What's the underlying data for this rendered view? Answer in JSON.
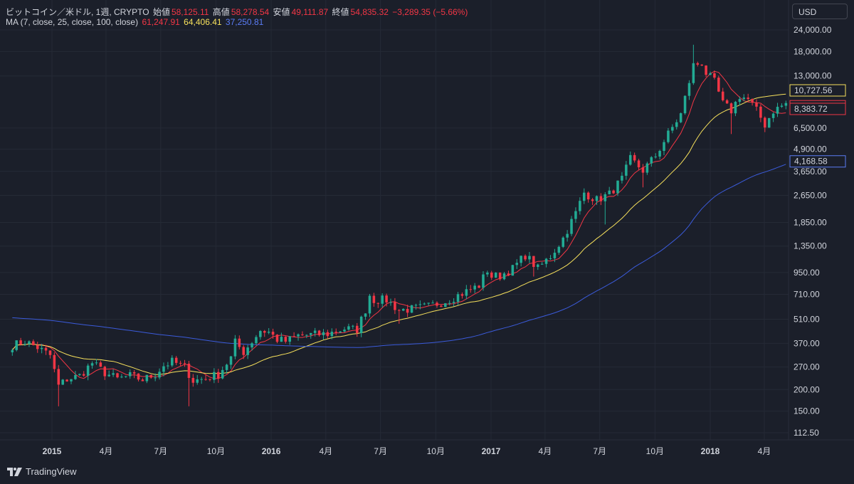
{
  "header": {
    "symbol": "ビットコイン／米ドル, 1週, CRYPTO",
    "open_label": "始値",
    "open_value": "58,125.11",
    "high_label": "高値",
    "high_value": "58,278.54",
    "low_label": "安値",
    "low_value": "49,111.87",
    "close_label": "終値",
    "close_value": "54,835.32",
    "change": "−3,289.35 (−5.66%)",
    "ma_label": "MA (7, close, 25, close, 100, close)",
    "ma7_value": "61,247.91",
    "ma25_value": "64,406.41",
    "ma100_value": "37,250.81"
  },
  "currency_button": "USD",
  "brand": "TradingView",
  "colors": {
    "background": "#1b1f2a",
    "grid": "#252a36",
    "text": "#d1d4dc",
    "up": "#22ab94",
    "down": "#f23645",
    "ma7": "#f23645",
    "ma25": "#f7e15c",
    "ma100": "#3b5bdb"
  },
  "chart_data": {
    "type": "candlestick",
    "scale": "log",
    "x_ticks": [
      {
        "label": "2015",
        "date": "2015-01-01"
      },
      {
        "label": "4月",
        "date": "2015-04-01"
      },
      {
        "label": "7月",
        "date": "2015-07-01"
      },
      {
        "label": "10月",
        "date": "2015-10-01"
      },
      {
        "label": "2016",
        "date": "2016-01-01"
      },
      {
        "label": "4月",
        "date": "2016-04-01"
      },
      {
        "label": "7月",
        "date": "2016-07-01"
      },
      {
        "label": "10月",
        "date": "2016-10-01"
      },
      {
        "label": "2017",
        "date": "2017-01-01"
      },
      {
        "label": "4月",
        "date": "2017-04-01"
      },
      {
        "label": "7月",
        "date": "2017-07-01"
      },
      {
        "label": "10月",
        "date": "2017-10-01"
      },
      {
        "label": "2018",
        "date": "2018-01-01"
      },
      {
        "label": "4月",
        "date": "2018-04-01"
      }
    ],
    "y_ticks": [
      {
        "label": "24,000.00",
        "value": 24000
      },
      {
        "label": "18,000.00",
        "value": 18000
      },
      {
        "label": "13,000.00",
        "value": 13000
      },
      {
        "label": "6,500.00",
        "value": 6500
      },
      {
        "label": "4,900.00",
        "value": 4900
      },
      {
        "label": "3,650.00",
        "value": 3650
      },
      {
        "label": "2,650.00",
        "value": 2650
      },
      {
        "label": "1,850.00",
        "value": 1850
      },
      {
        "label": "1,350.00",
        "value": 1350
      },
      {
        "label": "950.00",
        "value": 950
      },
      {
        "label": "710.00",
        "value": 710
      },
      {
        "label": "510.00",
        "value": 510
      },
      {
        "label": "370.00",
        "value": 370
      },
      {
        "label": "270.00",
        "value": 270
      },
      {
        "label": "200.00",
        "value": 200
      },
      {
        "label": "150.00",
        "value": 150
      },
      {
        "label": "112.50",
        "value": 112.5
      }
    ],
    "price_labels": [
      {
        "label": "10,727.56",
        "value": 10727.56,
        "color": "#f7e15c"
      },
      {
        "label": "8,691.59",
        "value": 8691.59,
        "color": "#f23645"
      },
      {
        "label": "8,383.72",
        "value": 8383.72,
        "color": "#f23645"
      },
      {
        "label": "4,168.58",
        "value": 4168.58,
        "color": "#5b7cf5"
      }
    ],
    "close_anchors": [
      [
        "2014-10-27",
        360
      ],
      [
        "2014-11-17",
        380
      ],
      [
        "2014-12-08",
        350
      ],
      [
        "2014-12-29",
        315
      ],
      [
        "2015-01-12",
        210
      ],
      [
        "2015-01-26",
        230
      ],
      [
        "2015-02-16",
        240
      ],
      [
        "2015-03-09",
        285
      ],
      [
        "2015-03-30",
        250
      ],
      [
        "2015-04-20",
        230
      ],
      [
        "2015-05-11",
        240
      ],
      [
        "2015-06-01",
        228
      ],
      [
        "2015-06-22",
        245
      ],
      [
        "2015-07-06",
        275
      ],
      [
        "2015-07-20",
        290
      ],
      [
        "2015-08-10",
        270
      ],
      [
        "2015-08-24",
        225
      ],
      [
        "2015-09-14",
        232
      ],
      [
        "2015-10-05",
        245
      ],
      [
        "2015-10-26",
        305
      ],
      [
        "2015-11-02",
        375
      ],
      [
        "2015-11-16",
        330
      ],
      [
        "2015-11-30",
        380
      ],
      [
        "2015-12-14",
        440
      ],
      [
        "2015-12-28",
        430
      ],
      [
        "2016-01-11",
        390
      ],
      [
        "2016-01-25",
        380
      ],
      [
        "2016-02-15",
        410
      ],
      [
        "2016-03-07",
        415
      ],
      [
        "2016-04-04",
        420
      ],
      [
        "2016-05-02",
        450
      ],
      [
        "2016-05-23",
        445
      ],
      [
        "2016-06-06",
        580
      ],
      [
        "2016-06-13",
        705
      ],
      [
        "2016-06-20",
        660
      ],
      [
        "2016-07-11",
        660
      ],
      [
        "2016-08-01",
        575
      ],
      [
        "2016-08-22",
        585
      ],
      [
        "2016-09-19",
        605
      ],
      [
        "2016-10-17",
        650
      ],
      [
        "2016-11-14",
        720
      ],
      [
        "2016-12-12",
        800
      ],
      [
        "2016-12-26",
        980
      ],
      [
        "2017-01-02",
        900
      ],
      [
        "2017-01-16",
        910
      ],
      [
        "2017-02-06",
        1000
      ],
      [
        "2017-02-27",
        1200
      ],
      [
        "2017-03-20",
        1000
      ],
      [
        "2017-04-10",
        1180
      ],
      [
        "2017-05-01",
        1500
      ],
      [
        "2017-05-22",
        2100
      ],
      [
        "2017-06-05",
        2750
      ],
      [
        "2017-06-26",
        2500
      ],
      [
        "2017-07-17",
        2700
      ],
      [
        "2017-08-07",
        3300
      ],
      [
        "2017-08-21",
        4300
      ],
      [
        "2017-09-11",
        3700
      ],
      [
        "2017-10-02",
        4500
      ],
      [
        "2017-10-23",
        6000
      ],
      [
        "2017-11-13",
        7800
      ],
      [
        "2017-12-04",
        15000
      ],
      [
        "2017-12-18",
        15500
      ],
      [
        "2017-12-25",
        13500
      ],
      [
        "2018-01-08",
        12000
      ],
      [
        "2018-01-22",
        9000
      ],
      [
        "2018-02-05",
        8200
      ],
      [
        "2018-02-19",
        10000
      ],
      [
        "2018-03-05",
        9500
      ],
      [
        "2018-03-19",
        8200
      ],
      [
        "2018-04-02",
        6800
      ],
      [
        "2018-04-16",
        8200
      ],
      [
        "2018-05-07",
        9000
      ],
      [
        "2018-05-21",
        8400
      ]
    ],
    "highlight_wicks": [
      {
        "date": "2015-01-12",
        "low": 160
      },
      {
        "date": "2015-08-17",
        "low": 160
      },
      {
        "date": "2016-08-01",
        "low": 480
      },
      {
        "date": "2017-03-13",
        "low": 900
      },
      {
        "date": "2017-07-10",
        "low": 1800
      },
      {
        "date": "2017-09-11",
        "low": 2950
      },
      {
        "date": "2017-12-04",
        "high": 19700
      },
      {
        "date": "2018-02-05",
        "low": 6000
      }
    ],
    "series": [
      {
        "name": "MA 7",
        "period": 7,
        "color": "#f23645"
      },
      {
        "name": "MA 25",
        "period": 25,
        "color": "#f7e15c"
      },
      {
        "name": "MA 100",
        "period": 100,
        "color": "#3b5bdb",
        "seed_start": 520
      }
    ]
  }
}
